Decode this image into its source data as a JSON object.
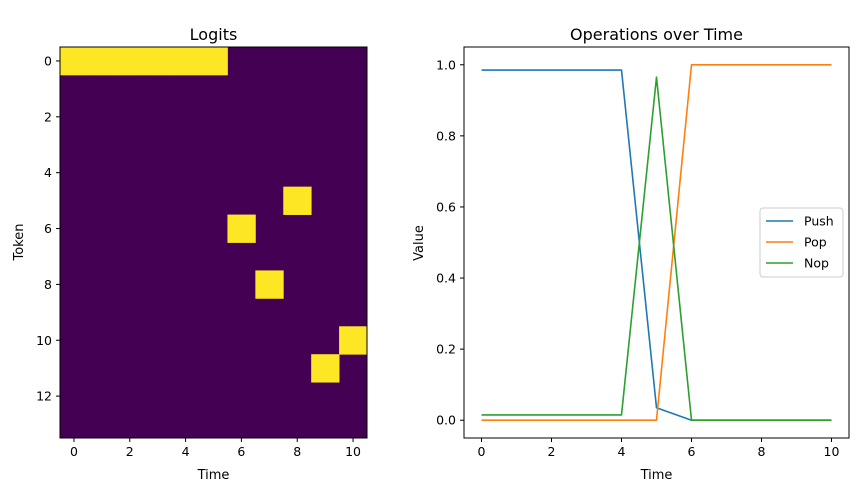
{
  "chart_data": [
    {
      "type": "heatmap",
      "title": "Logits",
      "xlabel": "Time",
      "ylabel": "Token",
      "x_ticks": [
        "0",
        "2",
        "4",
        "6",
        "8",
        "10"
      ],
      "y_ticks": [
        "0",
        "2",
        "4",
        "6",
        "8",
        "10",
        "12"
      ],
      "n_cols": 11,
      "n_rows": 14,
      "colors": {
        "low": "#440154",
        "high": "#fde725"
      },
      "active_cells": [
        {
          "time": 0,
          "token": 0
        },
        {
          "time": 1,
          "token": 0
        },
        {
          "time": 2,
          "token": 0
        },
        {
          "time": 3,
          "token": 0
        },
        {
          "time": 4,
          "token": 0
        },
        {
          "time": 5,
          "token": 0
        },
        {
          "time": 6,
          "token": 6
        },
        {
          "time": 7,
          "token": 8
        },
        {
          "time": 8,
          "token": 5
        },
        {
          "time": 9,
          "token": 11
        },
        {
          "time": 10,
          "token": 10
        }
      ]
    },
    {
      "type": "line",
      "title": "Operations over Time",
      "xlabel": "Time",
      "ylabel": "Value",
      "xlim": [
        -0.5,
        10.5
      ],
      "ylim": [
        -0.05,
        1.05
      ],
      "x_ticks": [
        "0",
        "2",
        "4",
        "6",
        "8",
        "10"
      ],
      "y_ticks": [
        "0.0",
        "0.2",
        "0.4",
        "0.6",
        "0.8",
        "1.0"
      ],
      "legend_position": "center-right",
      "x": [
        0,
        1,
        2,
        3,
        4,
        5,
        6,
        7,
        8,
        9,
        10
      ],
      "series": [
        {
          "name": "Push",
          "color": "#1f77b4",
          "values": [
            0.985,
            0.985,
            0.985,
            0.985,
            0.985,
            0.035,
            0.0,
            0.0,
            0.0,
            0.0,
            0.0
          ]
        },
        {
          "name": "Pop",
          "color": "#ff7f0e",
          "values": [
            0.0,
            0.0,
            0.0,
            0.0,
            0.0,
            0.0,
            1.0,
            1.0,
            1.0,
            1.0,
            1.0
          ]
        },
        {
          "name": "Nop",
          "color": "#2ca02c",
          "values": [
            0.015,
            0.015,
            0.015,
            0.015,
            0.015,
            0.965,
            0.0,
            0.0,
            0.0,
            0.0,
            0.0
          ]
        }
      ]
    }
  ]
}
